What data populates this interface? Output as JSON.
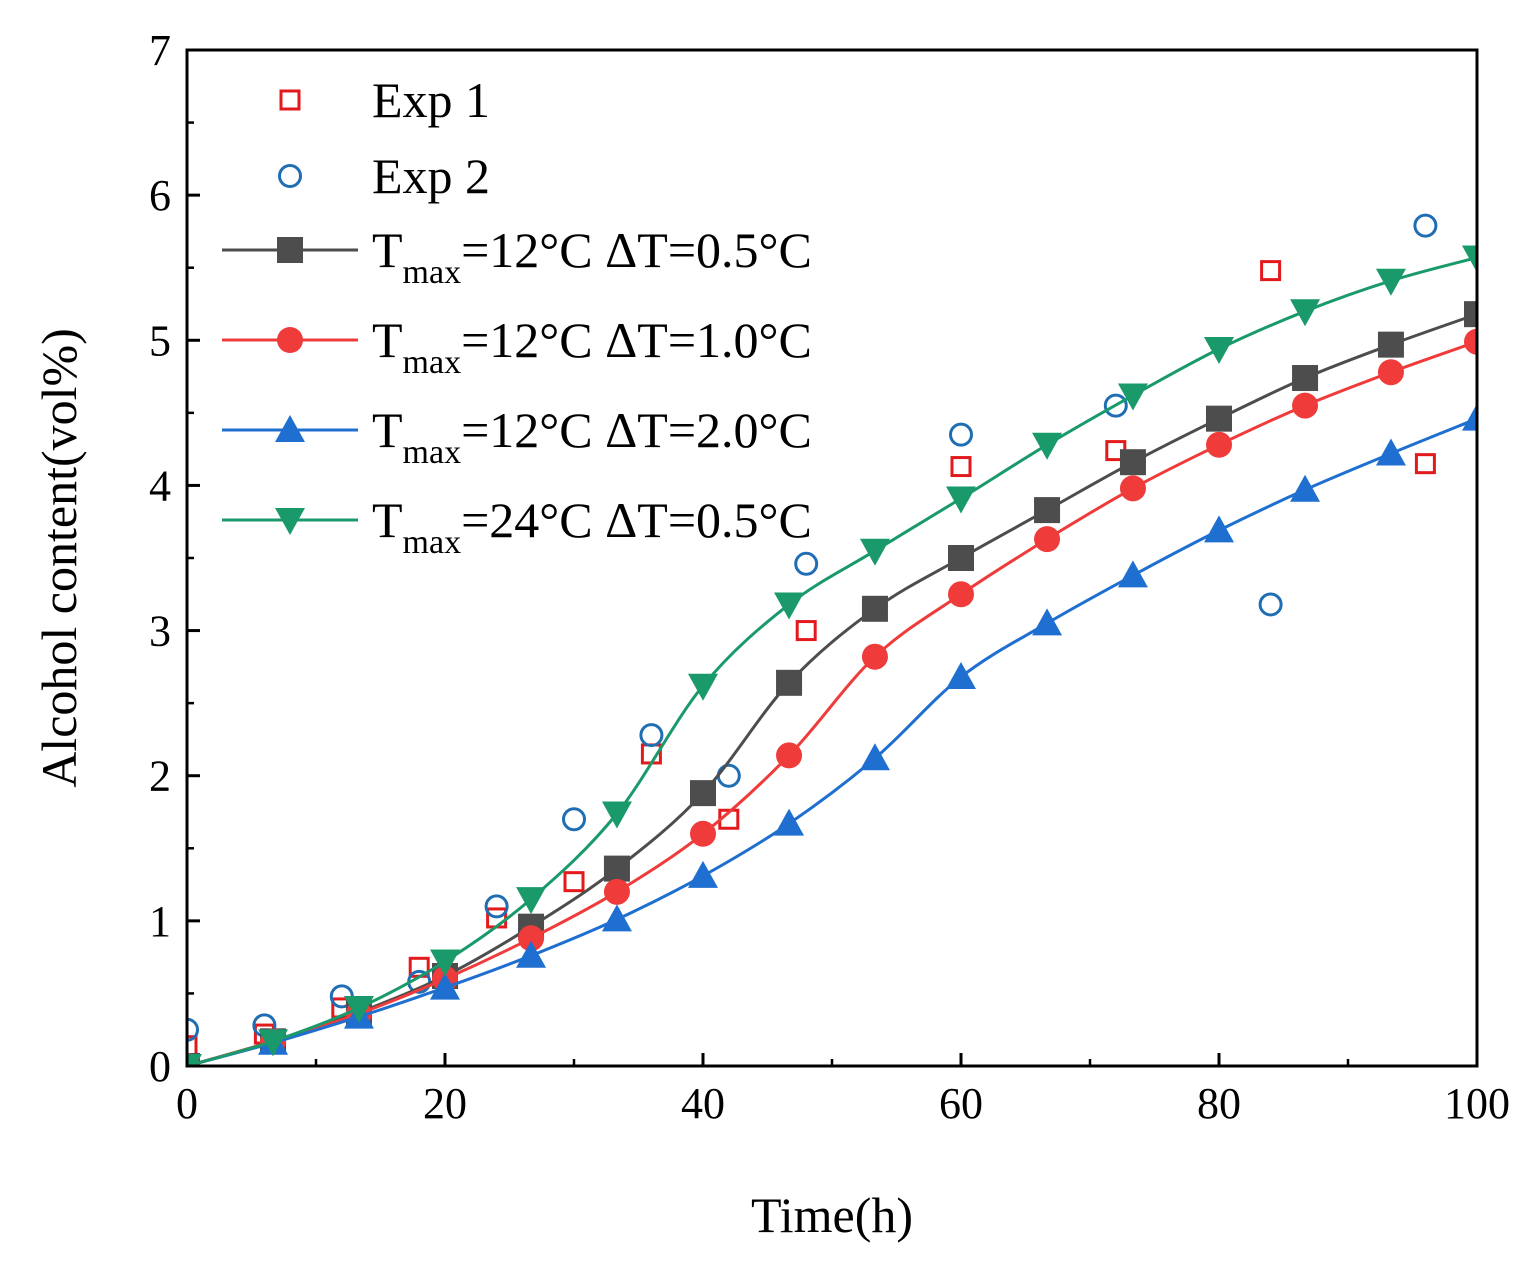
{
  "chart_data": {
    "type": "line",
    "title": "",
    "xlabel": "Time(h)",
    "ylabel": "Alcohol content(vol%)",
    "xlim": [
      0,
      100
    ],
    "ylim": [
      0,
      7
    ],
    "xticks": [
      0,
      20,
      40,
      60,
      80,
      100
    ],
    "yticks": [
      0,
      1,
      2,
      3,
      4,
      5,
      6,
      7
    ],
    "grid": false,
    "legend_position": "top-left",
    "series": [
      {
        "name": "Exp 1",
        "kind": "scatter",
        "marker": "square-open",
        "color": "#e31a1c",
        "x": [
          0,
          6,
          12,
          18,
          24,
          30,
          36,
          42,
          48,
          60,
          72,
          84,
          96
        ],
        "y": [
          0.14,
          0.22,
          0.4,
          0.68,
          1.02,
          1.27,
          2.15,
          1.7,
          3.0,
          4.13,
          4.24,
          5.48,
          4.15
        ]
      },
      {
        "name": "Exp 2",
        "kind": "scatter",
        "marker": "circle-open",
        "color": "#1f6eb4",
        "x": [
          0,
          6,
          12,
          18,
          24,
          30,
          36,
          42,
          48,
          60,
          72,
          84,
          96
        ],
        "y": [
          0.25,
          0.28,
          0.48,
          0.58,
          1.1,
          1.7,
          2.28,
          2.0,
          3.46,
          4.35,
          4.55,
          3.18,
          5.79
        ]
      },
      {
        "name": "Tmax=12°C ΔT=0.5°C",
        "label_main": "T",
        "label_sub": "max",
        "label_rest": "=12°C ΔT=0.5°C",
        "kind": "line",
        "marker": "square-filled",
        "color": "#4d4d4d",
        "x": [
          0,
          6.67,
          13.33,
          20,
          26.67,
          33.33,
          40,
          46.67,
          53.33,
          60,
          66.67,
          73.33,
          80,
          86.67,
          93.33,
          100
        ],
        "y": [
          0,
          0.17,
          0.37,
          0.62,
          0.96,
          1.36,
          1.88,
          2.64,
          3.15,
          3.5,
          3.83,
          4.16,
          4.46,
          4.74,
          4.97,
          5.18
        ]
      },
      {
        "name": "Tmax=12°C ΔT=1.0°C",
        "label_main": "T",
        "label_sub": "max",
        "label_rest": "=12°C ΔT=1.0°C",
        "kind": "line",
        "marker": "circle-filled",
        "color": "#f03b3b",
        "x": [
          0,
          6.67,
          13.33,
          20,
          26.67,
          33.33,
          40,
          46.67,
          53.33,
          60,
          66.67,
          73.33,
          80,
          86.67,
          93.33,
          100
        ],
        "y": [
          0,
          0.17,
          0.36,
          0.6,
          0.88,
          1.2,
          1.6,
          2.14,
          2.82,
          3.25,
          3.63,
          3.98,
          4.28,
          4.55,
          4.78,
          4.99
        ]
      },
      {
        "name": "Tmax=12°C ΔT=2.0°C",
        "label_main": "T",
        "label_sub": "max",
        "label_rest": "=12°C ΔT=2.0°C",
        "kind": "line",
        "marker": "triangle-up-filled",
        "color": "#1f6fd1",
        "x": [
          0,
          6.67,
          13.33,
          20,
          26.67,
          33.33,
          40,
          46.67,
          53.33,
          60,
          66.67,
          73.33,
          80,
          86.67,
          93.33,
          100
        ],
        "y": [
          0,
          0.16,
          0.34,
          0.54,
          0.76,
          1.01,
          1.31,
          1.67,
          2.12,
          2.68,
          3.05,
          3.38,
          3.69,
          3.97,
          4.22,
          4.46
        ]
      },
      {
        "name": "Tmax=24°C ΔT=0.5°C",
        "label_main": "T",
        "label_sub": "max",
        "label_rest": "=24°C ΔT=0.5°C",
        "kind": "line",
        "marker": "triangle-down-filled",
        "color": "#1a9a6a",
        "x": [
          0,
          6.67,
          13.33,
          20,
          26.67,
          33.33,
          40,
          46.67,
          53.33,
          60,
          66.67,
          73.33,
          80,
          86.67,
          93.33,
          100
        ],
        "y": [
          0,
          0.17,
          0.4,
          0.72,
          1.15,
          1.74,
          2.62,
          3.18,
          3.55,
          3.91,
          4.28,
          4.62,
          4.94,
          5.2,
          5.41,
          5.57
        ]
      }
    ]
  }
}
